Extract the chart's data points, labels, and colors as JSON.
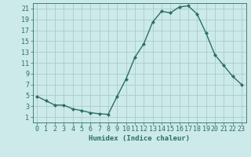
{
  "x": [
    0,
    1,
    2,
    3,
    4,
    5,
    6,
    7,
    8,
    9,
    10,
    11,
    12,
    13,
    14,
    15,
    16,
    17,
    18,
    19,
    20,
    21,
    22,
    23
  ],
  "y": [
    4.8,
    4.0,
    3.2,
    3.2,
    2.5,
    2.2,
    1.8,
    1.6,
    1.5,
    4.8,
    8.0,
    12.0,
    14.5,
    18.5,
    20.5,
    20.2,
    21.3,
    21.5,
    20.0,
    16.5,
    12.5,
    10.5,
    8.5,
    7.0
  ],
  "line_color": "#2d6e63",
  "marker": "D",
  "marker_size": 2.0,
  "bg_color": "#cceaea",
  "grid_color": "#aacccc",
  "xlabel": "Humidex (Indice chaleur)",
  "xlim": [
    -0.5,
    23.5
  ],
  "ylim": [
    0,
    22
  ],
  "xticks": [
    0,
    1,
    2,
    3,
    4,
    5,
    6,
    7,
    8,
    9,
    10,
    11,
    12,
    13,
    14,
    15,
    16,
    17,
    18,
    19,
    20,
    21,
    22,
    23
  ],
  "yticks": [
    1,
    3,
    5,
    7,
    9,
    11,
    13,
    15,
    17,
    19,
    21
  ],
  "xlabel_fontsize": 6.5,
  "tick_fontsize": 6.0,
  "linewidth": 1.0
}
